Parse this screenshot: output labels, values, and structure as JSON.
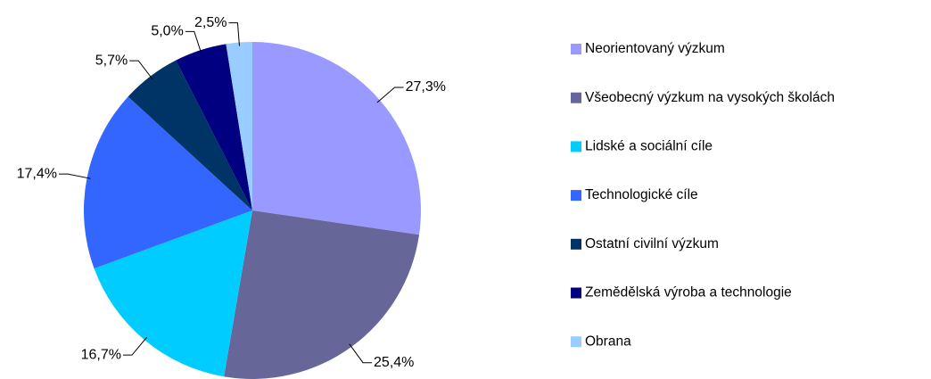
{
  "chart_data": {
    "type": "pie",
    "categories": [
      "Neorientovaný výzkum",
      "Všeobecný výzkum na vysokých školách",
      "Lidské a sociální cíle",
      "Technologické cíle",
      "Ostatní civilní výzkum",
      "Zemědělská výroba a technologie",
      "Obrana"
    ],
    "values": [
      27.3,
      25.4,
      16.7,
      17.4,
      5.7,
      5.0,
      2.5
    ],
    "value_labels": [
      "27,3%",
      "25,4%",
      "16,7%",
      "17,4%",
      "5,7%",
      "5,0%",
      "2,5%"
    ],
    "colors": [
      "#9999ff",
      "#666699",
      "#00ccff",
      "#3366ff",
      "#003366",
      "#000080",
      "#99ccff"
    ],
    "legend": "right"
  }
}
